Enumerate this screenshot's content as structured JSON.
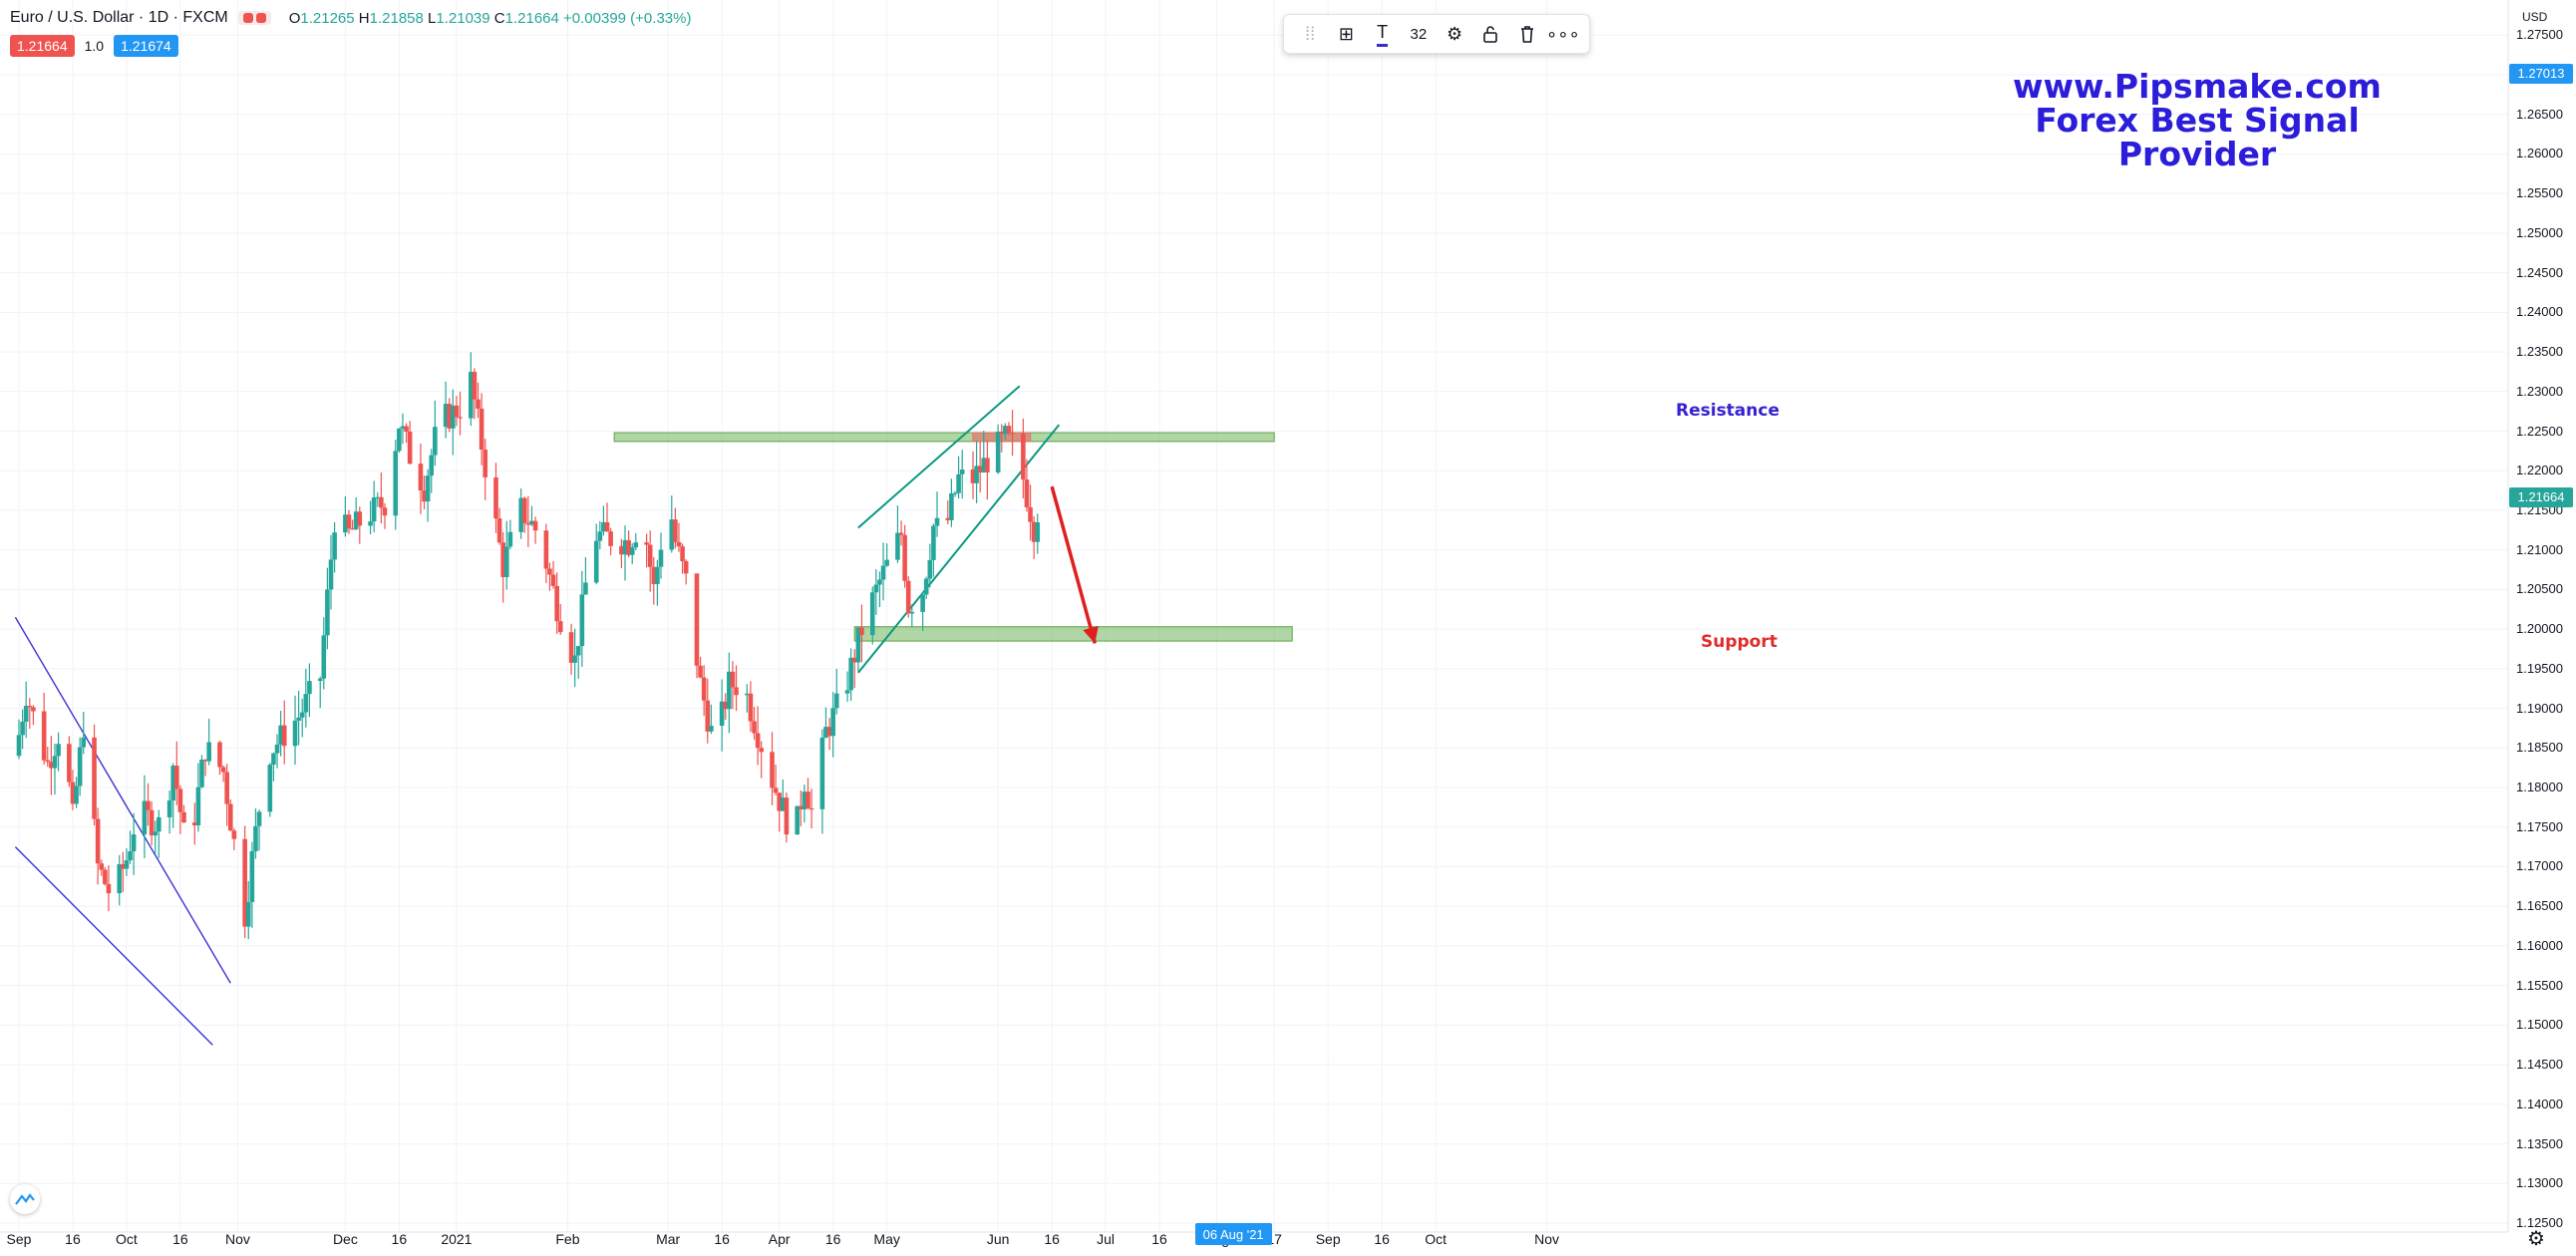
{
  "legend": {
    "title": "Euro / U.S. Dollar · 1D · FXCM",
    "open_label": "O",
    "open": "1.21265",
    "high_label": "H",
    "high": "1.21858",
    "low_label": "L",
    "low": "1.21039",
    "close_label": "C",
    "close": "1.21664",
    "change": "+0.00399 (+0.33%)"
  },
  "prices": {
    "sell": "1.21664",
    "spread": "1.0",
    "buy": "1.21674"
  },
  "toolbar": {
    "font_size": "32",
    "icons": [
      "drag-handle-icon",
      "add-icon",
      "text-color-icon",
      "settings-icon",
      "lock-icon",
      "trash-icon",
      "more-icon"
    ]
  },
  "watermark": {
    "line1": "www.Pipsmake.com",
    "line2": "Forex Best Signal Provider"
  },
  "annotations": {
    "resistance": "Resistance",
    "support": "Support"
  },
  "axis": {
    "currency": "USD",
    "ticks": [
      "1.27500",
      "1.27000",
      "1.26500",
      "1.26000",
      "1.25500",
      "1.25000",
      "1.24500",
      "1.24000",
      "1.23500",
      "1.23000",
      "1.22500",
      "1.22000",
      "1.21500",
      "1.21000",
      "1.20500",
      "1.20000",
      "1.19500",
      "1.19000",
      "1.18500",
      "1.18000",
      "1.17500",
      "1.17000",
      "1.16500",
      "1.16000",
      "1.15500",
      "1.15000",
      "1.14500",
      "1.14000",
      "1.13500",
      "1.13000",
      "1.12500"
    ],
    "tags": [
      {
        "label": "1.27013",
        "value": 1.27013,
        "color": "#2196f3"
      },
      {
        "label": "1.21664",
        "value": 1.21664,
        "color": "#26a69a"
      }
    ],
    "x_labels": [
      {
        "label": "Sep",
        "day": 0
      },
      {
        "label": "16",
        "day": 15
      },
      {
        "label": "Oct",
        "day": 30
      },
      {
        "label": "16",
        "day": 45
      },
      {
        "label": "Nov",
        "day": 61
      },
      {
        "label": "Dec",
        "day": 91
      },
      {
        "label": "16",
        "day": 106
      },
      {
        "label": "2021",
        "day": 122
      },
      {
        "label": "Feb",
        "day": 153
      },
      {
        "label": "Mar",
        "day": 181
      },
      {
        "label": "16",
        "day": 196
      },
      {
        "label": "Apr",
        "day": 212
      },
      {
        "label": "16",
        "day": 227
      },
      {
        "label": "May",
        "day": 242
      },
      {
        "label": "Jun",
        "day": 273
      },
      {
        "label": "16",
        "day": 288
      },
      {
        "label": "Jul",
        "day": 303
      },
      {
        "label": "16",
        "day": 318
      },
      {
        "label": "Aug",
        "day": 334
      },
      {
        "label": "17",
        "day": 350
      },
      {
        "label": "Sep",
        "day": 365
      },
      {
        "label": "16",
        "day": 380
      },
      {
        "label": "Oct",
        "day": 395
      },
      {
        "label": "Nov",
        "day": 426
      }
    ],
    "crosshair_date": "06 Aug '21",
    "crosshair_day": 339
  },
  "colors": {
    "up": "#26a69a",
    "down": "#ef5350",
    "accent": "#2196f3",
    "brand": "#2b1dd9"
  },
  "chart_data": {
    "type": "candlestick",
    "symbol": "EURUSD",
    "ylim": [
      1.125,
      1.2775
    ],
    "x_start": "Sep 1",
    "anchors": [
      [
        -1,
        1.184
      ],
      [
        2,
        1.192
      ],
      [
        8,
        1.183
      ],
      [
        12,
        1.188
      ],
      [
        15,
        1.176
      ],
      [
        18,
        1.188
      ],
      [
        22,
        1.17
      ],
      [
        26,
        1.166
      ],
      [
        30,
        1.171
      ],
      [
        33,
        1.177
      ],
      [
        40,
        1.175
      ],
      [
        43,
        1.183
      ],
      [
        47,
        1.171
      ],
      [
        52,
        1.185
      ],
      [
        57,
        1.182
      ],
      [
        63,
        1.164
      ],
      [
        65,
        1.171
      ],
      [
        69,
        1.184
      ],
      [
        78,
        1.189
      ],
      [
        84,
        1.194
      ],
      [
        88,
        1.214
      ],
      [
        92,
        1.212
      ],
      [
        96,
        1.214
      ],
      [
        102,
        1.216
      ],
      [
        106,
        1.226
      ],
      [
        109,
        1.222
      ],
      [
        113,
        1.218
      ],
      [
        117,
        1.226
      ],
      [
        123,
        1.228
      ],
      [
        125,
        1.234
      ],
      [
        128,
        1.226
      ],
      [
        131,
        1.218
      ],
      [
        135,
        1.208
      ],
      [
        140,
        1.215
      ],
      [
        145,
        1.212
      ],
      [
        150,
        1.203
      ],
      [
        155,
        1.196
      ],
      [
        160,
        1.212
      ],
      [
        170,
        1.211
      ],
      [
        174,
        1.214
      ],
      [
        177,
        1.205
      ],
      [
        181,
        1.217
      ],
      [
        183,
        1.211
      ],
      [
        186,
        1.206
      ],
      [
        190,
        1.193
      ],
      [
        194,
        1.185
      ],
      [
        198,
        1.193
      ],
      [
        202,
        1.193
      ],
      [
        206,
        1.187
      ],
      [
        210,
        1.181
      ],
      [
        214,
        1.176
      ],
      [
        216,
        1.173
      ],
      [
        219,
        1.181
      ],
      [
        221,
        1.177
      ],
      [
        225,
        1.187
      ],
      [
        230,
        1.192
      ],
      [
        235,
        1.2
      ],
      [
        240,
        1.206
      ],
      [
        244,
        1.21
      ],
      [
        246,
        1.212
      ],
      [
        248,
        1.203
      ],
      [
        252,
        1.205
      ],
      [
        255,
        1.213
      ],
      [
        258,
        1.212
      ],
      [
        262,
        1.219
      ],
      [
        266,
        1.219
      ],
      [
        271,
        1.222
      ],
      [
        275,
        1.224
      ],
      [
        278,
        1.223
      ],
      [
        283,
        1.213
      ],
      [
        285,
        1.217
      ]
    ],
    "resistance_zone": {
      "day_start": 166,
      "day_end": 350,
      "low": 1.2237,
      "high": 1.2248
    },
    "support_zone": {
      "day_start": 233,
      "day_end": 355,
      "low": 1.1985,
      "high": 1.2003
    },
    "sell_zone": {
      "day_start": 266,
      "day_end": 282,
      "low": 1.2237,
      "high": 1.2248
    },
    "channel_lines": [
      {
        "from": [
          -1,
          1.2015
        ],
        "to": [
          59,
          1.1553
        ],
        "color": "#3b33d4"
      },
      {
        "from": [
          -1,
          1.1725
        ],
        "to": [
          54,
          1.1475
        ],
        "color": "#3b33d4"
      },
      {
        "from": [
          234,
          1.2128
        ],
        "to": [
          279,
          1.2307
        ],
        "color": "#089981"
      },
      {
        "from": [
          234,
          1.1945
        ],
        "to": [
          290,
          1.2258
        ],
        "color": "#089981"
      }
    ],
    "arrow": {
      "from": [
        288,
        1.218
      ],
      "to": [
        300,
        1.1982
      ],
      "color": "#e01f1f"
    }
  }
}
